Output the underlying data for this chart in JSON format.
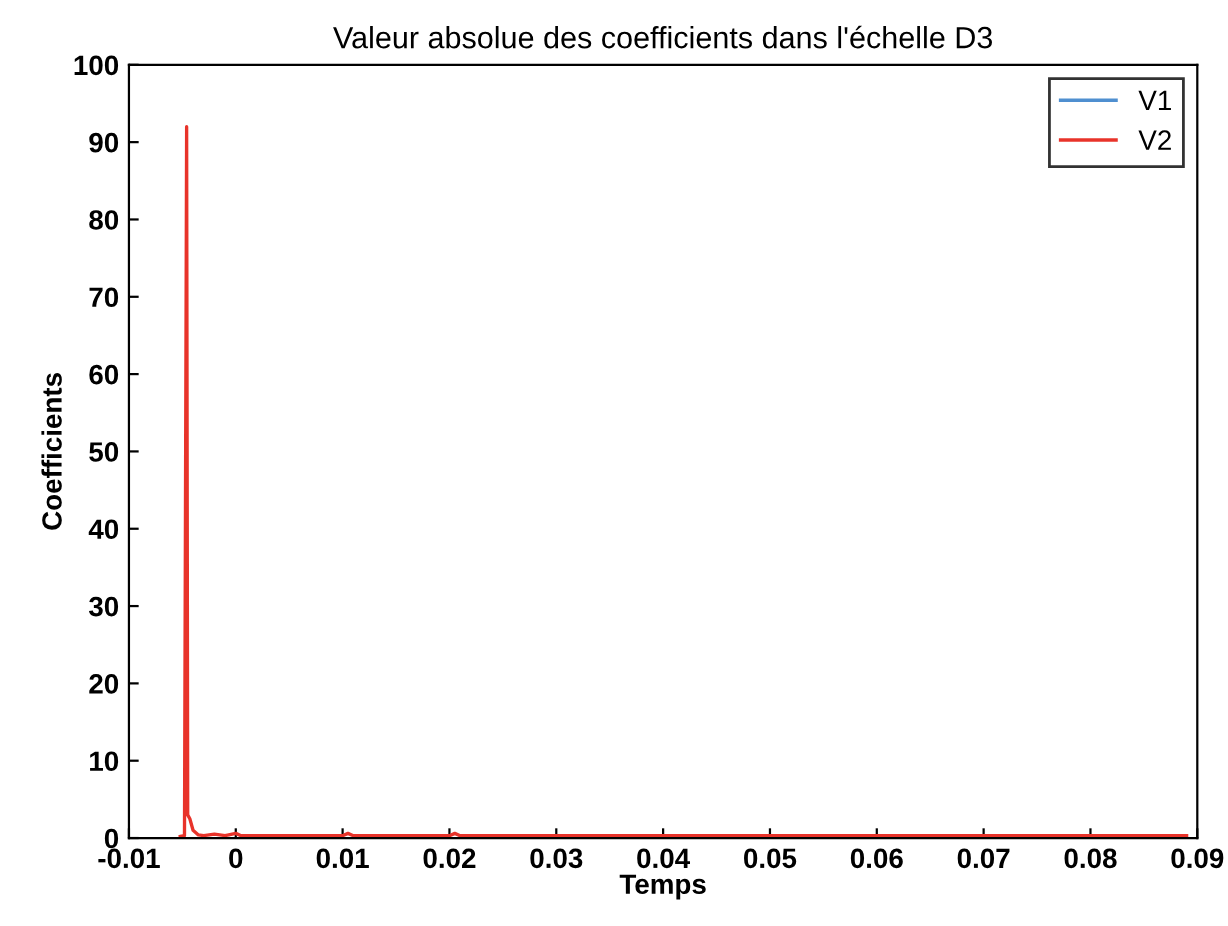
{
  "chart_data": {
    "type": "line",
    "title": "Valeur absolue des coefficients dans l'échelle D3",
    "xlabel": "Temps",
    "ylabel": "Coefficients",
    "series": [
      {
        "name": "V1",
        "color": "#4f8fd0"
      },
      {
        "name": "V2",
        "color": "#e8332a",
        "x": [
          -0.0052,
          -0.0048,
          -0.0046,
          -0.0045,
          -0.0043,
          -0.004,
          -0.0035,
          -0.003,
          -0.002,
          -0.001,
          0,
          0.0005,
          0.001,
          0.005,
          0.01,
          0.0105,
          0.011,
          0.02,
          0.0205,
          0.021,
          0.03,
          0.04,
          0.05,
          0.06,
          0.07,
          0.08,
          0.089
        ],
        "values": [
          0.2,
          0.3,
          92,
          3,
          2.5,
          1,
          0.4,
          0.3,
          0.5,
          0.3,
          0.6,
          0.3,
          0.3,
          0.3,
          0.3,
          0.6,
          0.3,
          0.3,
          0.6,
          0.3,
          0.3,
          0.3,
          0.3,
          0.3,
          0.3,
          0.3,
          0.3
        ]
      }
    ],
    "xlim": [
      -0.01,
      0.09
    ],
    "xticks": [
      -0.01,
      0,
      0.01,
      0.02,
      0.03,
      0.04,
      0.05,
      0.06,
      0.07,
      0.08,
      0.09
    ],
    "ylim": [
      0,
      100
    ],
    "yticks": [
      0,
      10,
      20,
      30,
      40,
      50,
      60,
      70,
      80,
      90,
      100
    ],
    "legend": "top right",
    "grid": false
  }
}
